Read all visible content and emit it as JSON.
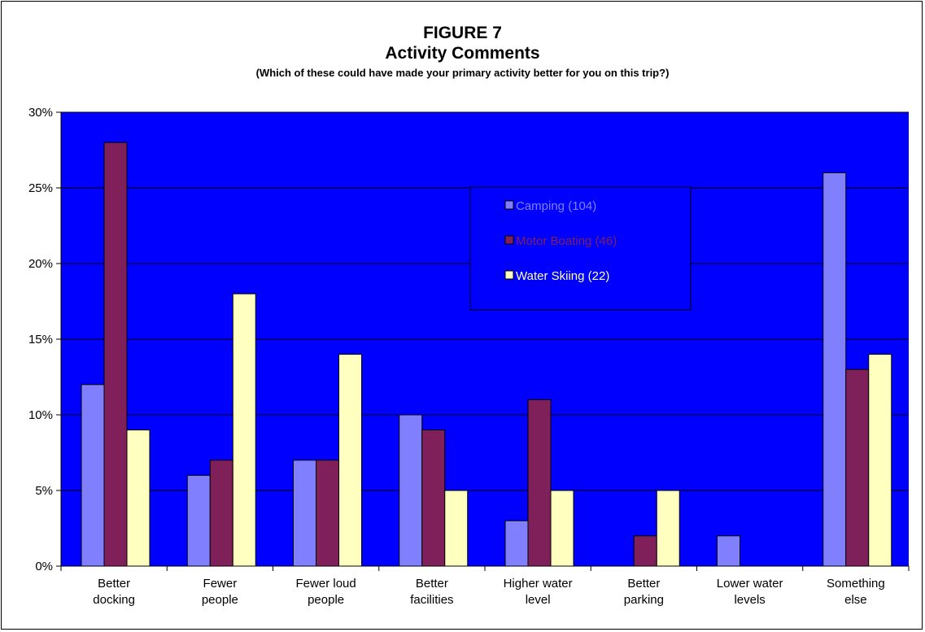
{
  "chart_data": {
    "type": "bar",
    "title": "FIGURE 7",
    "subtitle": "Activity Comments",
    "note": "(Which of these could have made your primary activity better for you on this trip?)",
    "categories": [
      [
        "Better",
        "docking"
      ],
      [
        "Fewer",
        "people"
      ],
      [
        "Fewer loud",
        "people"
      ],
      [
        "Better",
        "facilities"
      ],
      [
        "Higher water",
        "level"
      ],
      [
        "Better",
        "parking"
      ],
      [
        "Lower water",
        "levels"
      ],
      [
        "Something",
        "else"
      ]
    ],
    "series": [
      {
        "name": "Camping (104)",
        "color": "#8080ff",
        "values": [
          12,
          6,
          7,
          10,
          3,
          0,
          2,
          26
        ]
      },
      {
        "name": "Motor Boating (46)",
        "color": "#80205a",
        "values": [
          28,
          7,
          7,
          9,
          11,
          2,
          0,
          13
        ]
      },
      {
        "name": "Water Skiing (22)",
        "color": "#ffffc0",
        "values": [
          9,
          18,
          14,
          5,
          5,
          5,
          0,
          14
        ]
      }
    ],
    "ylim": [
      0,
      30
    ],
    "yticks": [
      "0%",
      "5%",
      "10%",
      "15%",
      "20%",
      "25%",
      "30%"
    ],
    "ytick_values": [
      0,
      5,
      10,
      15,
      20,
      25,
      30
    ],
    "grid": true,
    "legend": "top-right",
    "plot_bg": "#0000ff"
  }
}
